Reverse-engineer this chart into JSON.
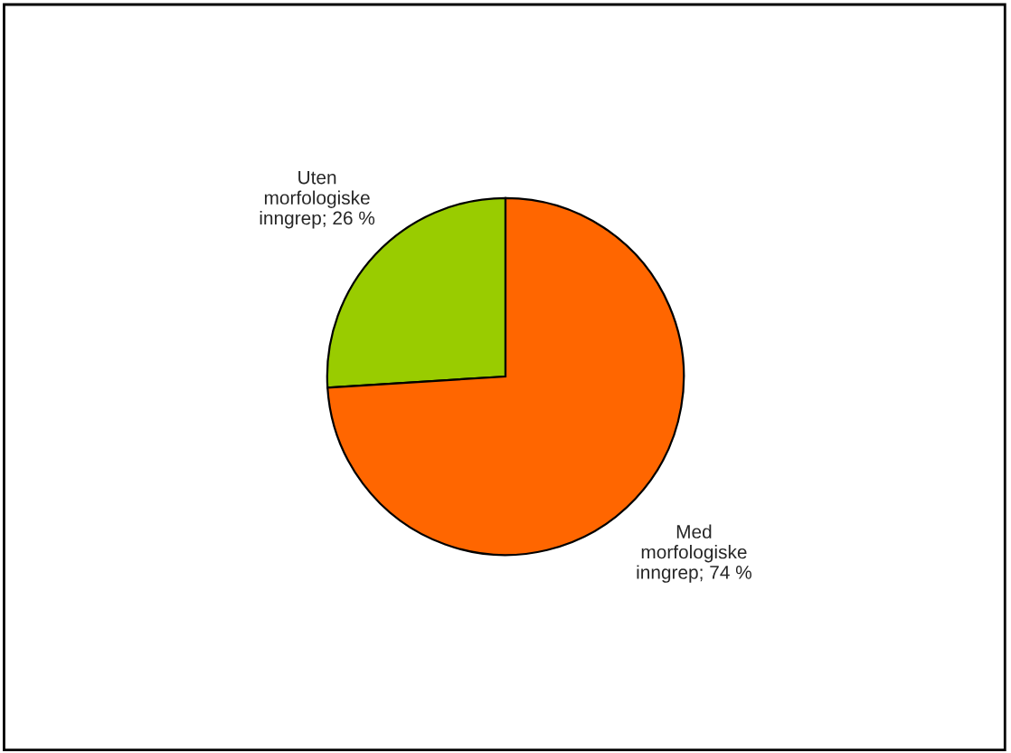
{
  "chart_data": {
    "type": "pie",
    "categories": [
      "Uten morfologiske inngrep",
      "Med morfologiske inngrep"
    ],
    "values": [
      26,
      74
    ],
    "value_labels": [
      "26 %",
      "74 %"
    ],
    "colors": [
      "#99cc00",
      "#ff6600"
    ],
    "legend": false
  }
}
